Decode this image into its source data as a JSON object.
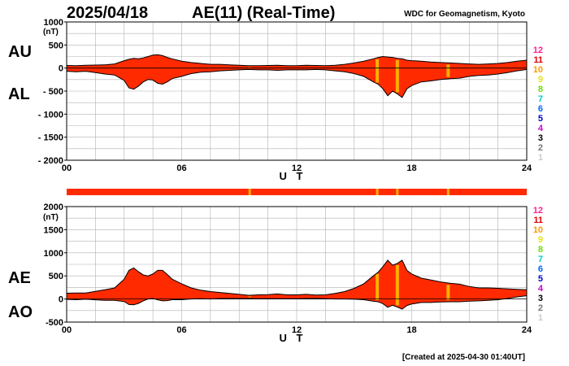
{
  "header": {
    "date": "2025/04/18",
    "title": "AE(11) (Real-Time)",
    "source": "WDC for Geomagnetism, Kyoto"
  },
  "footer": {
    "created": "[Created at 2025-04-30 01:40UT]"
  },
  "colors": {
    "fill": "#ff2a00",
    "band": "#ff2a00",
    "curve": "#000000",
    "grid": "#b0b0b0",
    "stations": "#ffb000"
  },
  "station_legend": [
    {
      "label": "12",
      "color": "#ff1f8f"
    },
    {
      "label": "11",
      "color": "#e00000"
    },
    {
      "label": "10",
      "color": "#ff9900"
    },
    {
      "label": "9",
      "color": "#e6e600"
    },
    {
      "label": "8",
      "color": "#66dd00"
    },
    {
      "label": "7",
      "color": "#00cccc"
    },
    {
      "label": "6",
      "color": "#0066ff"
    },
    {
      "label": "5",
      "color": "#0000cc"
    },
    {
      "label": "4",
      "color": "#cc00cc"
    },
    {
      "label": "3",
      "color": "#000000"
    },
    {
      "label": "2",
      "color": "#777777"
    },
    {
      "label": "1",
      "color": "#cccccc"
    }
  ],
  "chart_data": [
    {
      "type": "area",
      "panel": "AU/AL",
      "upper_label": "AU",
      "lower_label": "AL",
      "unit": "(nT)",
      "xlabel": "U T",
      "xlim": [
        0,
        24
      ],
      "xticks": [
        "00",
        "06",
        "12",
        "18",
        "24"
      ],
      "ylim": [
        -2000,
        1000
      ],
      "yticks": [
        "1000",
        "500",
        "0",
        "- 500",
        "- 1000",
        "- 1500",
        "- 2000"
      ],
      "grid": true,
      "x": [
        0,
        0.5,
        1,
        1.5,
        2,
        2.5,
        3,
        3.25,
        3.5,
        3.75,
        4,
        4.25,
        4.5,
        4.75,
        5,
        5.25,
        5.5,
        6,
        6.5,
        7,
        7.5,
        8,
        8.5,
        9,
        9.5,
        10,
        10.5,
        11,
        11.5,
        12,
        12.5,
        13,
        13.5,
        14,
        14.5,
        15,
        15.5,
        16,
        16.25,
        16.5,
        16.75,
        17,
        17.25,
        17.5,
        17.75,
        18,
        18.5,
        19,
        19.5,
        20,
        20.5,
        21,
        21.5,
        22,
        22.5,
        23,
        23.5,
        24
      ],
      "au": [
        55,
        50,
        60,
        65,
        70,
        90,
        160,
        190,
        210,
        200,
        220,
        250,
        280,
        290,
        270,
        230,
        200,
        150,
        120,
        100,
        80,
        80,
        70,
        60,
        50,
        50,
        55,
        60,
        50,
        50,
        60,
        55,
        50,
        60,
        80,
        110,
        150,
        200,
        230,
        250,
        240,
        230,
        210,
        200,
        170,
        160,
        150,
        130,
        120,
        110,
        100,
        90,
        80,
        90,
        100,
        120,
        150,
        170
      ],
      "al": [
        -70,
        -80,
        -70,
        -100,
        -130,
        -150,
        -270,
        -430,
        -460,
        -390,
        -300,
        -250,
        -260,
        -330,
        -350,
        -300,
        -230,
        -180,
        -120,
        -90,
        -80,
        -60,
        -50,
        -40,
        -30,
        -40,
        -40,
        -50,
        -40,
        -40,
        -40,
        -30,
        -40,
        -60,
        -80,
        -120,
        -180,
        -300,
        -350,
        -450,
        -600,
        -500,
        -560,
        -640,
        -450,
        -380,
        -300,
        -280,
        -250,
        -230,
        -220,
        -180,
        -160,
        -150,
        -130,
        -100,
        -60,
        -30
      ]
    },
    {
      "type": "area",
      "panel": "AE/AO",
      "upper_label": "AE",
      "lower_label": "AO",
      "unit": "(nT)",
      "xlabel": "U T",
      "xlim": [
        0,
        24
      ],
      "xticks": [
        "00",
        "06",
        "12",
        "18",
        "24"
      ],
      "ylim": [
        -500,
        2000
      ],
      "yticks": [
        "2000",
        "1500",
        "1000",
        "500",
        "0",
        "-500"
      ],
      "grid": true,
      "x": [
        0,
        0.5,
        1,
        1.5,
        2,
        2.5,
        3,
        3.25,
        3.5,
        3.75,
        4,
        4.25,
        4.5,
        4.75,
        5,
        5.25,
        5.5,
        6,
        6.5,
        7,
        7.5,
        8,
        8.5,
        9,
        9.5,
        10,
        10.5,
        11,
        11.5,
        12,
        12.5,
        13,
        13.5,
        14,
        14.5,
        15,
        15.5,
        16,
        16.25,
        16.5,
        16.75,
        17,
        17.25,
        17.5,
        17.75,
        18,
        18.5,
        19,
        19.5,
        20,
        20.5,
        21,
        21.5,
        22,
        22.5,
        23,
        23.5,
        24
      ],
      "ae": [
        125,
        130,
        130,
        165,
        200,
        240,
        430,
        620,
        670,
        590,
        520,
        500,
        540,
        620,
        620,
        530,
        430,
        330,
        240,
        190,
        160,
        140,
        120,
        100,
        80,
        90,
        95,
        110,
        90,
        90,
        100,
        85,
        90,
        120,
        160,
        230,
        330,
        500,
        580,
        700,
        840,
        730,
        770,
        840,
        620,
        540,
        450,
        410,
        370,
        340,
        320,
        270,
        240,
        240,
        230,
        220,
        210,
        200
      ],
      "ao": [
        -8,
        -15,
        -5,
        -18,
        -30,
        -30,
        -55,
        -120,
        -125,
        -95,
        -40,
        0,
        10,
        -20,
        -40,
        -35,
        -15,
        -15,
        0,
        5,
        0,
        10,
        10,
        10,
        10,
        5,
        8,
        5,
        5,
        5,
        10,
        12,
        5,
        0,
        0,
        -5,
        -15,
        -50,
        -60,
        -100,
        -180,
        -135,
        -175,
        -220,
        -140,
        -110,
        -75,
        -75,
        -65,
        -60,
        -60,
        -45,
        -40,
        -30,
        -15,
        10,
        45,
        70
      ]
    }
  ],
  "station_change_times": [
    9.55,
    16.2,
    17.25,
    19.9
  ],
  "status_band": {
    "color": "#ff2a00",
    "marks": [
      9.55,
      16.2,
      17.25,
      19.9
    ]
  }
}
